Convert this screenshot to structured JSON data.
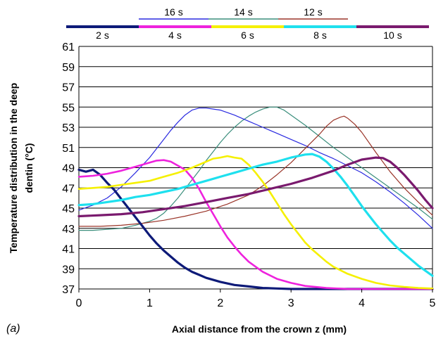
{
  "chart_data": {
    "type": "line",
    "panel_label": "(a)",
    "xlabel": "Axial distance from the crown z (mm)",
    "ylabel": "Temperature distribution in the deep dentin (°C)",
    "xlim": [
      0,
      5
    ],
    "ylim": [
      37,
      61
    ],
    "xticks": [
      0,
      1,
      2,
      3,
      4,
      5
    ],
    "yticks": [
      37,
      39,
      41,
      43,
      45,
      47,
      49,
      51,
      53,
      55,
      57,
      59,
      61
    ],
    "grid": "horizontal",
    "legend_placement": "top",
    "series": [
      {
        "name": "2 s",
        "color": "#0d1a78",
        "width": 3.2,
        "points": [
          [
            0,
            48.8
          ],
          [
            0.1,
            48.6
          ],
          [
            0.2,
            48.8
          ],
          [
            0.3,
            48.3
          ],
          [
            0.4,
            47.5
          ],
          [
            0.5,
            46.8
          ],
          [
            0.6,
            45.9
          ],
          [
            0.7,
            45.0
          ],
          [
            0.8,
            44.1
          ],
          [
            0.9,
            43.2
          ],
          [
            1.0,
            42.3
          ],
          [
            1.1,
            41.5
          ],
          [
            1.2,
            40.8
          ],
          [
            1.3,
            40.2
          ],
          [
            1.4,
            39.6
          ],
          [
            1.5,
            39.1
          ],
          [
            1.6,
            38.7
          ],
          [
            1.7,
            38.4
          ],
          [
            1.8,
            38.1
          ],
          [
            1.9,
            37.9
          ],
          [
            2.0,
            37.7
          ],
          [
            2.2,
            37.4
          ],
          [
            2.4,
            37.25
          ],
          [
            2.6,
            37.1
          ],
          [
            2.8,
            37.05
          ],
          [
            3.0,
            37.0
          ],
          [
            5.0,
            37.0
          ]
        ]
      },
      {
        "name": "4 s",
        "color": "#ee22dd",
        "width": 2.6,
        "points": [
          [
            0,
            48.1
          ],
          [
            0.2,
            48.2
          ],
          [
            0.4,
            48.4
          ],
          [
            0.6,
            48.7
          ],
          [
            0.8,
            49.1
          ],
          [
            1.0,
            49.5
          ],
          [
            1.1,
            49.7
          ],
          [
            1.2,
            49.75
          ],
          [
            1.3,
            49.6
          ],
          [
            1.4,
            49.2
          ],
          [
            1.5,
            48.8
          ],
          [
            1.6,
            48.0
          ],
          [
            1.7,
            46.9
          ],
          [
            1.8,
            45.6
          ],
          [
            1.9,
            44.4
          ],
          [
            2.0,
            43.2
          ],
          [
            2.1,
            42.1
          ],
          [
            2.2,
            41.2
          ],
          [
            2.3,
            40.4
          ],
          [
            2.4,
            39.7
          ],
          [
            2.5,
            39.2
          ],
          [
            2.6,
            38.7
          ],
          [
            2.8,
            38.0
          ],
          [
            3.0,
            37.6
          ],
          [
            3.2,
            37.3
          ],
          [
            3.5,
            37.1
          ],
          [
            3.8,
            37.0
          ],
          [
            5.0,
            37.0
          ]
        ]
      },
      {
        "name": "6 s",
        "color": "#f5f000",
        "width": 2.6,
        "points": [
          [
            0,
            46.9
          ],
          [
            0.2,
            47.0
          ],
          [
            0.4,
            47.1
          ],
          [
            0.6,
            47.3
          ],
          [
            0.8,
            47.5
          ],
          [
            1.0,
            47.7
          ],
          [
            1.2,
            48.1
          ],
          [
            1.4,
            48.5
          ],
          [
            1.6,
            49.0
          ],
          [
            1.8,
            49.6
          ],
          [
            1.9,
            49.9
          ],
          [
            2.0,
            50.0
          ],
          [
            2.1,
            50.15
          ],
          [
            2.2,
            50.0
          ],
          [
            2.3,
            49.9
          ],
          [
            2.4,
            49.3
          ],
          [
            2.5,
            48.5
          ],
          [
            2.6,
            47.6
          ],
          [
            2.7,
            46.6
          ],
          [
            2.8,
            45.5
          ],
          [
            2.9,
            44.4
          ],
          [
            3.0,
            43.4
          ],
          [
            3.1,
            42.5
          ],
          [
            3.2,
            41.6
          ],
          [
            3.3,
            40.9
          ],
          [
            3.4,
            40.3
          ],
          [
            3.5,
            39.7
          ],
          [
            3.6,
            39.2
          ],
          [
            3.8,
            38.5
          ],
          [
            4.0,
            38.0
          ],
          [
            4.2,
            37.6
          ],
          [
            4.4,
            37.35
          ],
          [
            4.6,
            37.2
          ],
          [
            4.8,
            37.1
          ],
          [
            5.0,
            37.05
          ]
        ]
      },
      {
        "name": "8 s",
        "color": "#1ee0ee",
        "width": 3.2,
        "points": [
          [
            0,
            45.3
          ],
          [
            0.2,
            45.4
          ],
          [
            0.4,
            45.6
          ],
          [
            0.6,
            45.8
          ],
          [
            0.8,
            46.1
          ],
          [
            1.0,
            46.3
          ],
          [
            1.2,
            46.6
          ],
          [
            1.4,
            46.9
          ],
          [
            1.6,
            47.3
          ],
          [
            1.8,
            47.7
          ],
          [
            2.0,
            48.1
          ],
          [
            2.2,
            48.5
          ],
          [
            2.4,
            48.9
          ],
          [
            2.6,
            49.3
          ],
          [
            2.8,
            49.6
          ],
          [
            3.0,
            50.0
          ],
          [
            3.2,
            50.3
          ],
          [
            3.3,
            50.35
          ],
          [
            3.4,
            50.1
          ],
          [
            3.5,
            49.6
          ],
          [
            3.6,
            48.9
          ],
          [
            3.7,
            48.1
          ],
          [
            3.8,
            47.2
          ],
          [
            3.9,
            46.2
          ],
          [
            4.0,
            45.2
          ],
          [
            4.1,
            44.3
          ],
          [
            4.2,
            43.4
          ],
          [
            4.3,
            42.6
          ],
          [
            4.4,
            41.8
          ],
          [
            4.5,
            41.1
          ],
          [
            4.6,
            40.5
          ],
          [
            4.7,
            39.9
          ],
          [
            4.8,
            39.3
          ],
          [
            4.9,
            38.8
          ],
          [
            5.0,
            38.3
          ]
        ]
      },
      {
        "name": "10 s",
        "color": "#7a1a6e",
        "width": 3.2,
        "points": [
          [
            0,
            44.2
          ],
          [
            0.3,
            44.3
          ],
          [
            0.6,
            44.4
          ],
          [
            0.9,
            44.6
          ],
          [
            1.2,
            44.9
          ],
          [
            1.5,
            45.2
          ],
          [
            1.8,
            45.6
          ],
          [
            2.1,
            46.0
          ],
          [
            2.4,
            46.4
          ],
          [
            2.7,
            46.9
          ],
          [
            3.0,
            47.4
          ],
          [
            3.3,
            48.0
          ],
          [
            3.6,
            48.7
          ],
          [
            3.8,
            49.3
          ],
          [
            4.0,
            49.8
          ],
          [
            4.2,
            50.0
          ],
          [
            4.3,
            49.95
          ],
          [
            4.4,
            49.6
          ],
          [
            4.5,
            49.0
          ],
          [
            4.6,
            48.3
          ],
          [
            4.7,
            47.5
          ],
          [
            4.8,
            46.7
          ],
          [
            4.9,
            45.8
          ],
          [
            5.0,
            45.0
          ]
        ]
      },
      {
        "name": "12 s",
        "color": "#9a3428",
        "width": 1.2,
        "points": [
          [
            0,
            43.2
          ],
          [
            0.3,
            43.2
          ],
          [
            0.6,
            43.3
          ],
          [
            0.9,
            43.5
          ],
          [
            1.2,
            43.8
          ],
          [
            1.5,
            44.2
          ],
          [
            1.8,
            44.7
          ],
          [
            2.1,
            45.4
          ],
          [
            2.4,
            46.3
          ],
          [
            2.6,
            47.2
          ],
          [
            2.8,
            48.3
          ],
          [
            3.0,
            49.5
          ],
          [
            3.2,
            50.9
          ],
          [
            3.4,
            52.3
          ],
          [
            3.5,
            53.1
          ],
          [
            3.6,
            53.7
          ],
          [
            3.7,
            54.0
          ],
          [
            3.75,
            54.1
          ],
          [
            3.8,
            53.9
          ],
          [
            3.9,
            53.3
          ],
          [
            4.0,
            52.5
          ],
          [
            4.2,
            50.5
          ],
          [
            4.4,
            48.6
          ],
          [
            4.6,
            47.0
          ],
          [
            4.8,
            45.6
          ],
          [
            5.0,
            44.3
          ]
        ]
      },
      {
        "name": "14 s",
        "color": "#3a8e7c",
        "width": 1.2,
        "points": [
          [
            0,
            42.8
          ],
          [
            0.2,
            42.8
          ],
          [
            0.4,
            42.9
          ],
          [
            0.6,
            43.0
          ],
          [
            0.8,
            43.3
          ],
          [
            1.0,
            43.7
          ],
          [
            1.1,
            44.0
          ],
          [
            1.2,
            44.5
          ],
          [
            1.3,
            45.2
          ],
          [
            1.4,
            46.0
          ],
          [
            1.5,
            46.9
          ],
          [
            1.6,
            47.8
          ],
          [
            1.7,
            48.7
          ],
          [
            1.8,
            49.7
          ],
          [
            1.9,
            50.6
          ],
          [
            2.0,
            51.5
          ],
          [
            2.1,
            52.3
          ],
          [
            2.2,
            53.0
          ],
          [
            2.3,
            53.6
          ],
          [
            2.4,
            54.1
          ],
          [
            2.5,
            54.5
          ],
          [
            2.6,
            54.8
          ],
          [
            2.7,
            55.0
          ],
          [
            2.8,
            55.0
          ],
          [
            2.9,
            54.7
          ],
          [
            3.0,
            54.2
          ],
          [
            3.2,
            53.2
          ],
          [
            3.4,
            52.1
          ],
          [
            3.6,
            51.0
          ],
          [
            3.8,
            50.0
          ],
          [
            4.0,
            49.0
          ],
          [
            4.2,
            48.0
          ],
          [
            4.4,
            47.0
          ],
          [
            4.6,
            46.0
          ],
          [
            4.8,
            45.0
          ],
          [
            5.0,
            43.9
          ]
        ]
      },
      {
        "name": "16 s",
        "color": "#2a2ae0",
        "width": 1.2,
        "points": [
          [
            0,
            44.8
          ],
          [
            0.2,
            45.3
          ],
          [
            0.4,
            46.0
          ],
          [
            0.6,
            47.1
          ],
          [
            0.8,
            48.5
          ],
          [
            1.0,
            50.0
          ],
          [
            1.1,
            50.9
          ],
          [
            1.2,
            51.8
          ],
          [
            1.3,
            52.7
          ],
          [
            1.4,
            53.5
          ],
          [
            1.5,
            54.2
          ],
          [
            1.6,
            54.7
          ],
          [
            1.7,
            54.9
          ],
          [
            1.8,
            54.9
          ],
          [
            1.9,
            54.8
          ],
          [
            2.0,
            54.7
          ],
          [
            2.2,
            54.2
          ],
          [
            2.4,
            53.6
          ],
          [
            2.6,
            53.0
          ],
          [
            2.8,
            52.4
          ],
          [
            3.0,
            51.8
          ],
          [
            3.2,
            51.2
          ],
          [
            3.4,
            50.5
          ],
          [
            3.6,
            49.9
          ],
          [
            3.8,
            49.2
          ],
          [
            4.0,
            48.5
          ],
          [
            4.2,
            47.6
          ],
          [
            4.4,
            46.6
          ],
          [
            4.6,
            45.5
          ],
          [
            4.8,
            44.3
          ],
          [
            5.0,
            43.0
          ]
        ]
      }
    ]
  }
}
